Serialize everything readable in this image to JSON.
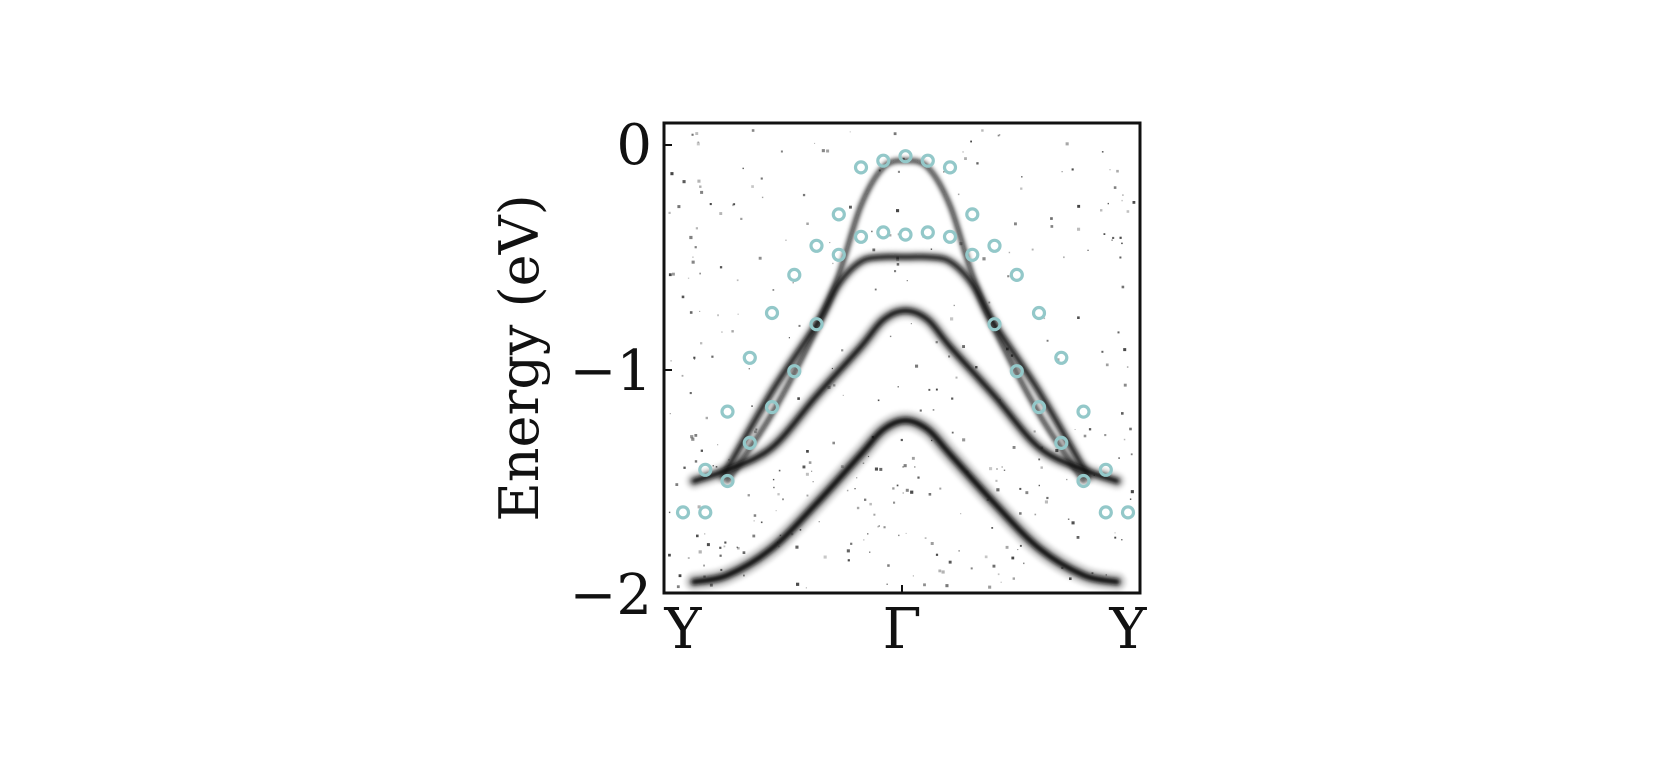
{
  "chart_data": {
    "type": "scatter",
    "title": "",
    "xlabel": "",
    "ylabel": "Energy (eV)",
    "xlim": [
      -1,
      1
    ],
    "ylim": [
      -2,
      0
    ],
    "yticks": [
      0,
      -1,
      -2
    ],
    "ytick_labels": [
      "0",
      "−1",
      "−2"
    ],
    "xtick_labels": [
      "Y",
      "Γ",
      "Y"
    ],
    "xtick_positions": [
      -1,
      0,
      1
    ],
    "grid": false,
    "legend": "none",
    "colors": {
      "calculated": "#93c8c9",
      "arpes": "#111111"
    },
    "background_image": "ARPES second-derivative intensity map (grayscale)",
    "arpes_bands": [
      {
        "x": [
          -0.8,
          -0.6,
          -0.4,
          -0.3,
          -0.2,
          -0.1,
          0,
          0.1,
          0.2,
          0.3,
          0.4,
          0.6,
          0.8
        ],
        "y": [
          -1.5,
          -1.2,
          -0.82,
          -0.58,
          -0.27,
          -0.1,
          -0.07,
          -0.1,
          -0.27,
          -0.58,
          -0.82,
          -1.2,
          -1.5
        ]
      },
      {
        "x": [
          -0.82,
          -0.6,
          -0.4,
          -0.3,
          -0.2,
          -0.1,
          0,
          0.1,
          0.2,
          0.3,
          0.4,
          0.6,
          0.82
        ],
        "y": [
          -1.48,
          -1.1,
          -0.8,
          -0.62,
          -0.52,
          -0.5,
          -0.5,
          -0.5,
          -0.52,
          -0.62,
          -0.8,
          -1.1,
          -1.48
        ]
      },
      {
        "x": [
          -0.95,
          -0.8,
          -0.6,
          -0.4,
          -0.2,
          -0.1,
          0,
          0.1,
          0.2,
          0.4,
          0.6,
          0.8,
          0.95
        ],
        "y": [
          -1.5,
          -1.45,
          -1.35,
          -1.12,
          -0.9,
          -0.78,
          -0.74,
          -0.78,
          -0.9,
          -1.12,
          -1.35,
          -1.45,
          -1.5
        ]
      },
      {
        "x": [
          -0.95,
          -0.8,
          -0.6,
          -0.4,
          -0.2,
          -0.1,
          0,
          0.1,
          0.2,
          0.4,
          0.6,
          0.8,
          0.95
        ],
        "y": [
          -1.95,
          -1.92,
          -1.8,
          -1.6,
          -1.38,
          -1.27,
          -1.23,
          -1.27,
          -1.38,
          -1.6,
          -1.8,
          -1.92,
          -1.95
        ]
      }
    ],
    "series": [
      {
        "x": [
          -1.0,
          -0.9,
          -0.8,
          -0.7,
          -0.6,
          -0.5,
          -0.4,
          -0.3,
          -0.2,
          -0.1,
          0,
          0.1,
          0.2,
          0.3,
          0.4,
          0.5,
          0.6,
          0.7,
          0.8,
          0.9,
          1.0
        ],
        "y": [
          -1.64,
          -1.45,
          -1.19,
          -0.95,
          -0.75,
          -0.58,
          -0.45,
          -0.31,
          -0.1,
          -0.07,
          -0.05,
          -0.07,
          -0.1,
          -0.31,
          -0.45,
          -0.58,
          -0.75,
          -0.95,
          -1.19,
          -1.45,
          -1.64
        ]
      },
      {
        "x": [
          -0.9,
          -0.8,
          -0.7,
          -0.6,
          -0.5,
          -0.4,
          -0.3,
          -0.2,
          -0.1,
          0,
          0.1,
          0.2,
          0.3,
          0.4,
          0.5,
          0.6,
          0.7,
          0.8,
          0.9
        ],
        "y": [
          -1.64,
          -1.5,
          -1.33,
          -1.17,
          -1.01,
          -0.8,
          -0.49,
          -0.41,
          -0.39,
          -0.4,
          -0.39,
          -0.41,
          -0.49,
          -0.8,
          -1.01,
          -1.17,
          -1.33,
          -1.5,
          -1.64
        ]
      }
    ]
  }
}
